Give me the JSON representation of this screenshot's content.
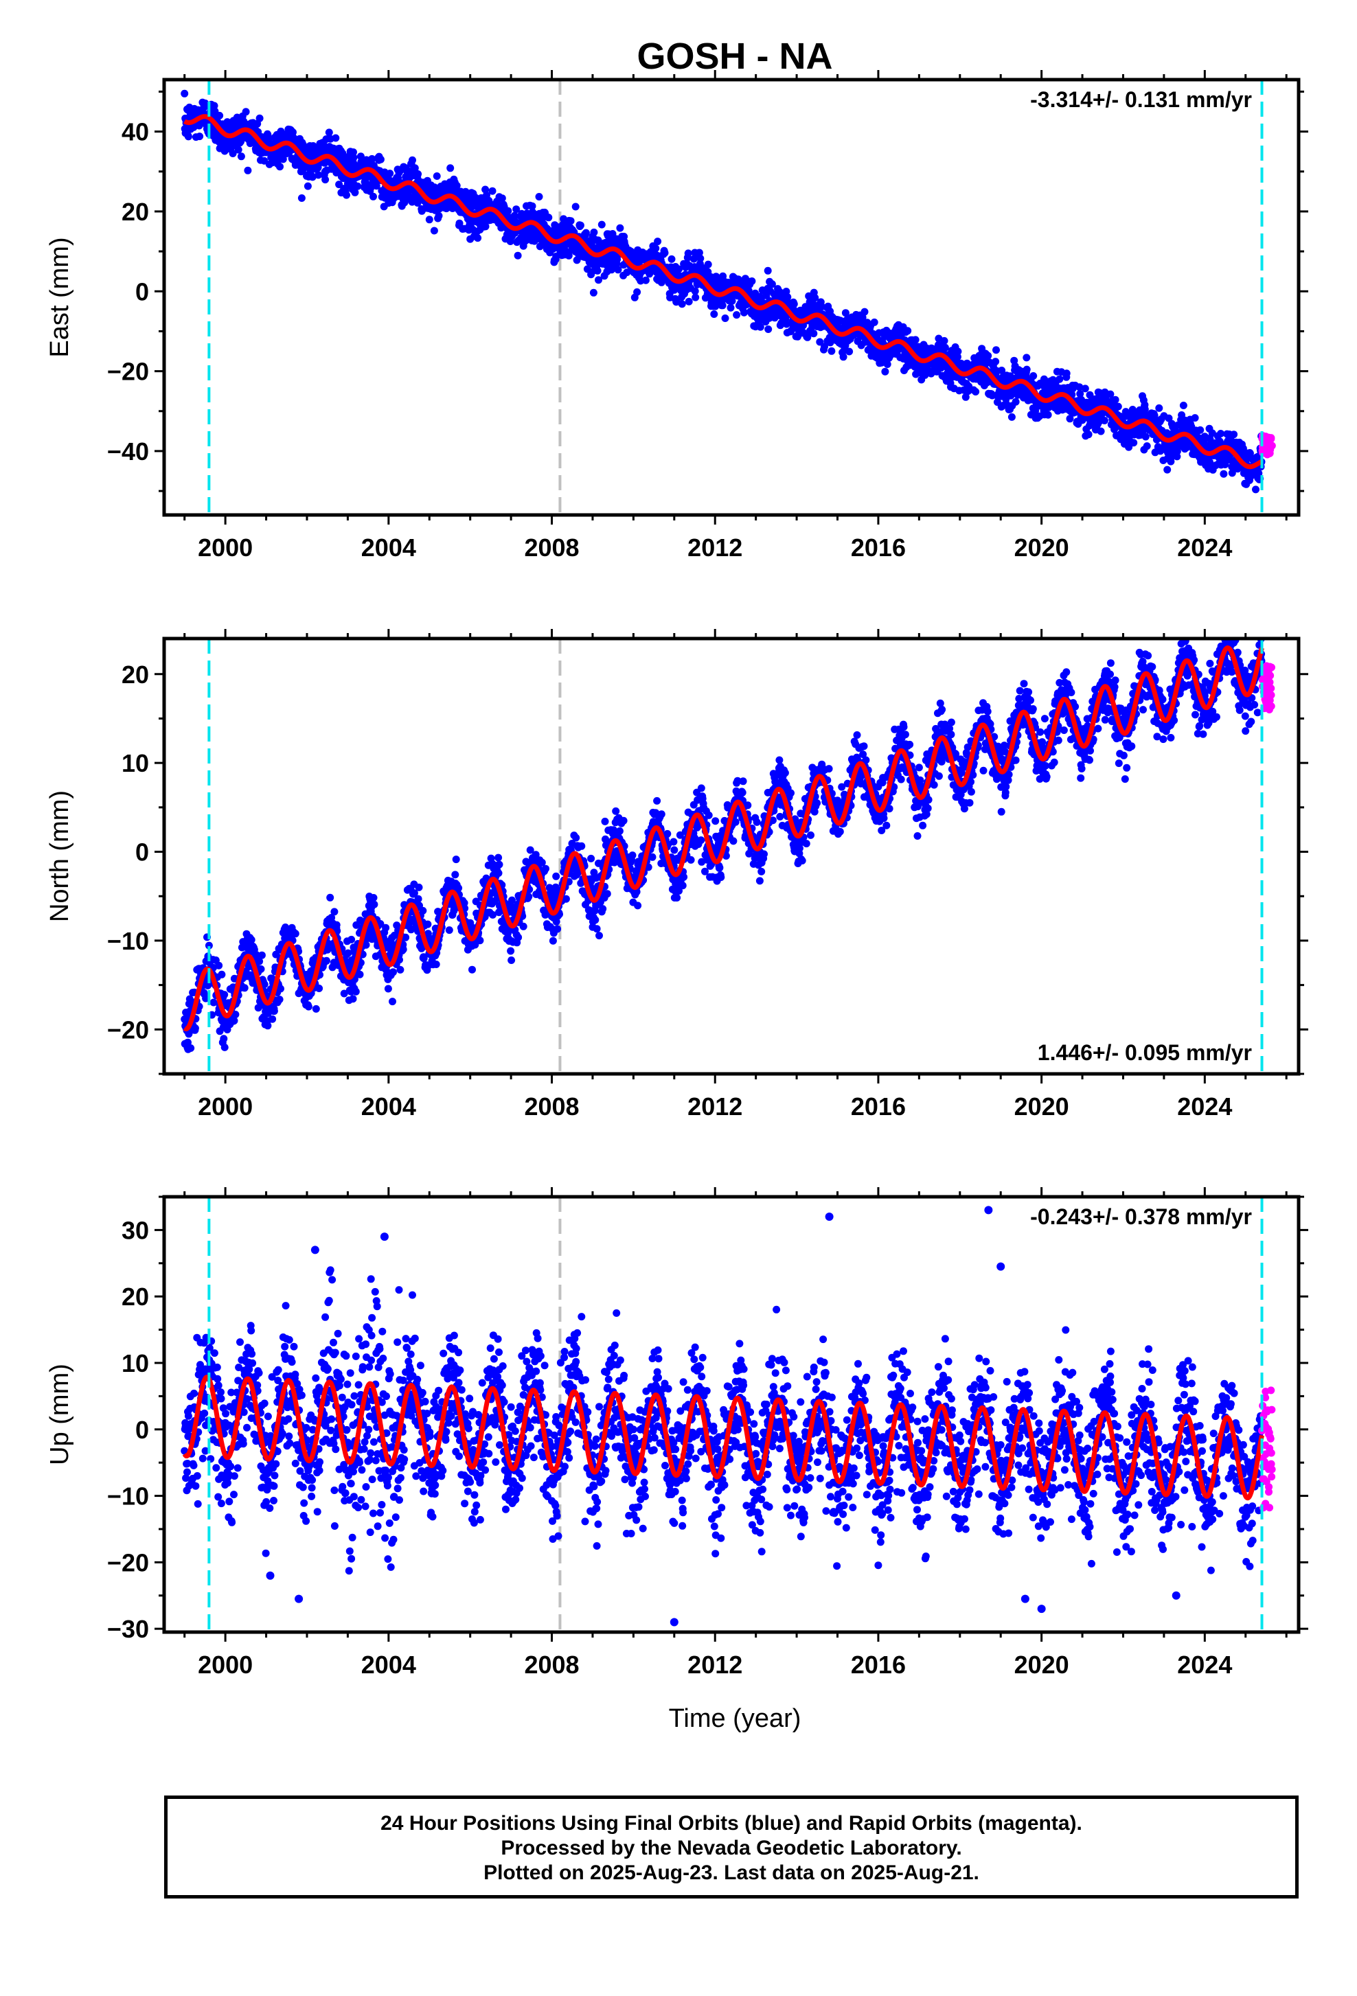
{
  "title": "GOSH - NA",
  "xlabel": "Time (year)",
  "caption": {
    "line1": "24 Hour Positions Using Final Orbits (blue) and Rapid Orbits (magenta).",
    "line2": "Processed by the Nevada Geodetic Laboratory.",
    "line3": "Plotted on 2025-Aug-23. Last data on 2025-Aug-21."
  },
  "colors": {
    "final_points": "#0000ff",
    "rapid_points": "#ff00ff",
    "model_line": "#ff0000",
    "steps": "#00e5ee",
    "equipment_change": "#c0c0c0"
  },
  "chart_data": [
    {
      "type": "scatter",
      "ylabel": "East (mm)",
      "rate_label": "-3.314+/- 0.131 mm/yr",
      "rate_position": "top-right",
      "xlim": [
        1998.5,
        2026.3
      ],
      "ylim": [
        -56,
        53
      ],
      "xticks": [
        2000,
        2004,
        2008,
        2012,
        2016,
        2020,
        2024
      ],
      "yticks": [
        -40,
        -20,
        0,
        20,
        40
      ],
      "steps": [
        1999.6,
        2025.4
      ],
      "equipment_change": [
        2008.2
      ],
      "series": [
        {
          "name": "Final Orbits",
          "color": "blue",
          "x_range": [
            1999.0,
            2025.4
          ],
          "trend": {
            "start_year": 1999.0,
            "start_value": 44.0,
            "rate_mm_yr": -3.314
          },
          "scatter_mm": 2.5
        },
        {
          "name": "Rapid Orbits",
          "color": "magenta",
          "x_range": [
            2025.4,
            2025.65
          ],
          "value_range": [
            -41,
            -36
          ]
        }
      ],
      "model": {
        "annual_amplitude_mm": 1.5,
        "color": "red"
      }
    },
    {
      "type": "scatter",
      "ylabel": "North (mm)",
      "rate_label": "1.446+/- 0.095 mm/yr",
      "rate_position": "bottom-right",
      "xlim": [
        1998.5,
        2026.3
      ],
      "ylim": [
        -25,
        24
      ],
      "xticks": [
        2000,
        2004,
        2008,
        2012,
        2016,
        2020,
        2024
      ],
      "yticks": [
        -20,
        -10,
        0,
        10,
        20
      ],
      "steps": [
        1999.6,
        2025.4
      ],
      "equipment_change": [
        2008.2
      ],
      "series": [
        {
          "name": "Final Orbits",
          "color": "blue",
          "x_range": [
            1999.0,
            2025.4
          ],
          "trend": {
            "start_year": 1999.0,
            "start_value": -17.0,
            "rate_mm_yr": 1.446
          },
          "scatter_mm": 1.5
        },
        {
          "name": "Rapid Orbits",
          "color": "magenta",
          "x_range": [
            2025.4,
            2025.65
          ],
          "value_range": [
            16,
            21
          ]
        }
      ],
      "model": {
        "annual_amplitude_mm": 3.0,
        "color": "red"
      }
    },
    {
      "type": "scatter",
      "ylabel": "Up (mm)",
      "rate_label": "-0.243+/- 0.378 mm/yr",
      "rate_position": "top-right",
      "xlim": [
        1998.5,
        2026.3
      ],
      "ylim": [
        -30.5,
        35
      ],
      "xticks": [
        2000,
        2004,
        2008,
        2012,
        2016,
        2020,
        2024
      ],
      "yticks": [
        -30,
        -20,
        -10,
        0,
        10,
        20,
        30
      ],
      "steps": [
        1999.6,
        2025.4
      ],
      "equipment_change": [
        2008.2
      ],
      "series": [
        {
          "name": "Final Orbits",
          "color": "blue",
          "x_range": [
            1999.0,
            2025.4
          ],
          "trend": {
            "start_year": 1999.0,
            "start_value": 2.0,
            "rate_mm_yr": -0.243
          },
          "scatter_mm": 4.5
        },
        {
          "name": "Rapid Orbits",
          "color": "magenta",
          "x_range": [
            2025.4,
            2025.65
          ],
          "value_range": [
            -12,
            6
          ]
        }
      ],
      "model": {
        "annual_amplitude_mm": 6.0,
        "color": "red"
      },
      "outliers": [
        {
          "x": 2018.7,
          "y": 33
        },
        {
          "x": 2014.8,
          "y": 32
        },
        {
          "x": 2019.0,
          "y": 24.5
        },
        {
          "x": 2003.9,
          "y": 29
        },
        {
          "x": 2002.2,
          "y": 27
        },
        {
          "x": 2001.1,
          "y": -22
        },
        {
          "x": 2001.8,
          "y": -25.5
        },
        {
          "x": 2011.0,
          "y": -29
        },
        {
          "x": 2020.0,
          "y": -27
        },
        {
          "x": 2019.6,
          "y": -25.5
        },
        {
          "x": 2023.3,
          "y": -25
        }
      ]
    }
  ]
}
